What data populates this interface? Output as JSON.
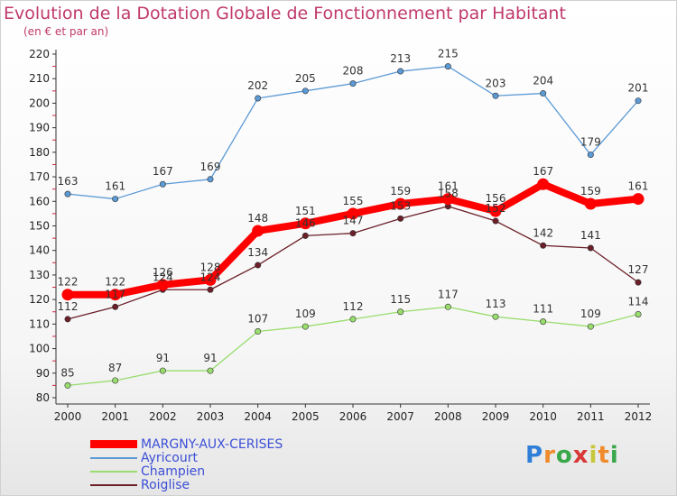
{
  "title": "Evolution de la Dotation Globale de Fonctionnement par Habitant",
  "subtitle": "(en € et par an)",
  "brand": "Proxiti",
  "chart_data": {
    "type": "line",
    "title": "Evolution de la Dotation Globale de Fonctionnement par Habitant",
    "subtitle": "(en € et par an)",
    "xlabel": "",
    "ylabel": "",
    "categories": [
      "2000",
      "2001",
      "2002",
      "2003",
      "2004",
      "2005",
      "2006",
      "2007",
      "2008",
      "2009",
      "2010",
      "2011",
      "2012"
    ],
    "ylim": [
      80,
      220
    ],
    "yticks": [
      80,
      90,
      100,
      110,
      120,
      130,
      140,
      150,
      160,
      170,
      180,
      190,
      200,
      210,
      220
    ],
    "grid": false,
    "legend": "bottom-left",
    "series": [
      {
        "name": "MARGNY-AUX-CERISES",
        "color": "#ff0000",
        "values": [
          122,
          122,
          126,
          128,
          148,
          151,
          155,
          159,
          161,
          156,
          167,
          159,
          161
        ],
        "highlight": true
      },
      {
        "name": "Ayricourt",
        "color": "#5b9ad5",
        "values": [
          163,
          161,
          167,
          169,
          202,
          205,
          208,
          213,
          215,
          203,
          204,
          179,
          201
        ]
      },
      {
        "name": "Champien",
        "color": "#99dd6e",
        "values": [
          85,
          87,
          91,
          91,
          107,
          109,
          112,
          115,
          117,
          113,
          111,
          109,
          114
        ]
      },
      {
        "name": "Roiglise",
        "color": "#6b1f28",
        "values": [
          112,
          117,
          124,
          124,
          134,
          146,
          147,
          153,
          158,
          152,
          142,
          141,
          127
        ]
      }
    ]
  }
}
